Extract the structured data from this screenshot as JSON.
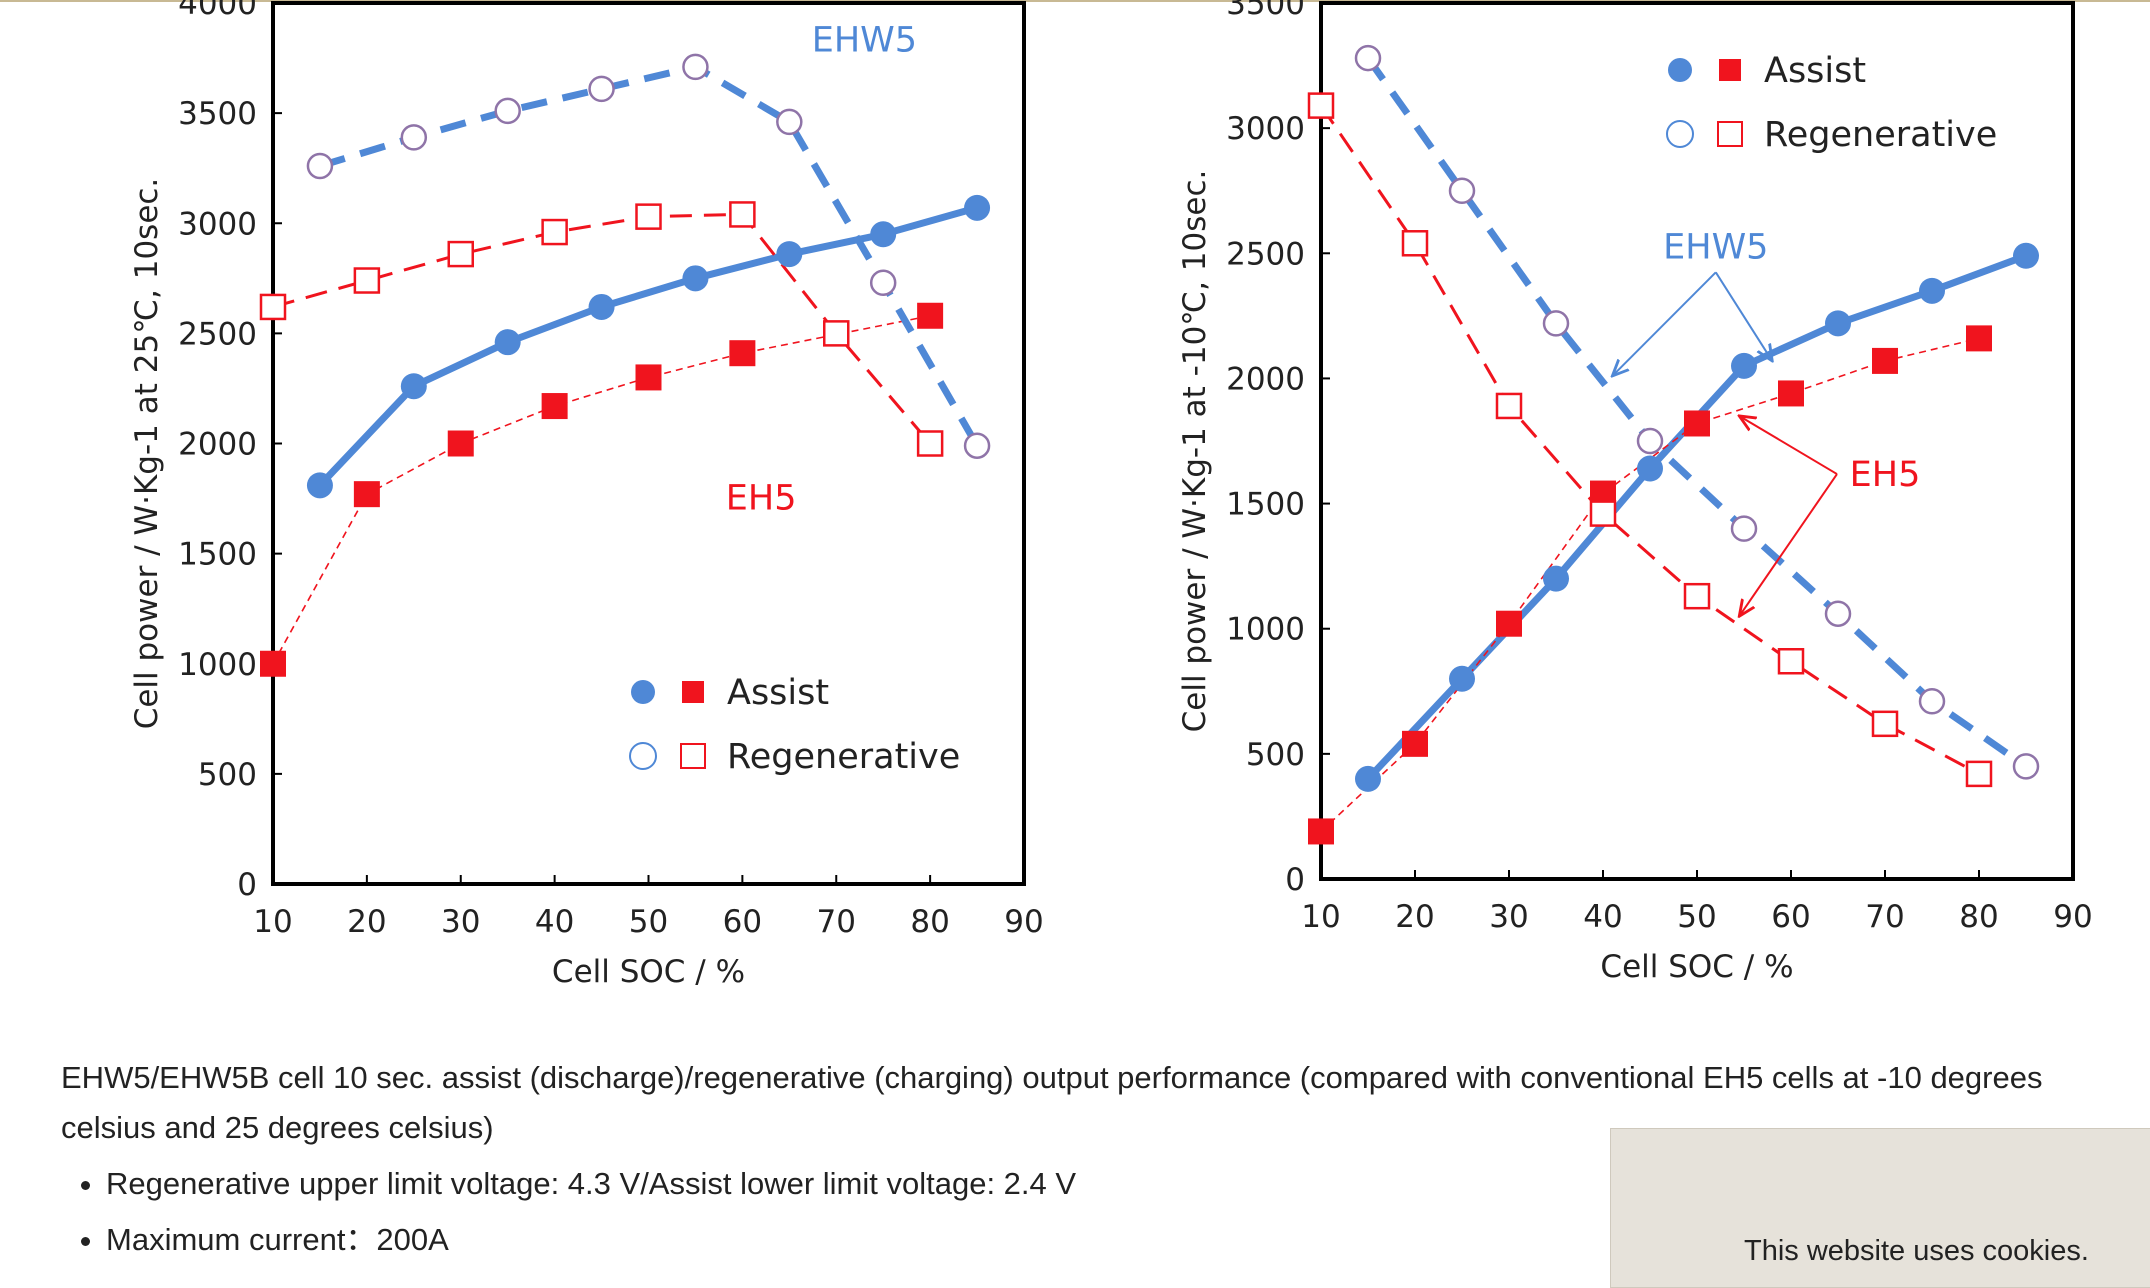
{
  "colors": {
    "blue": "#4f88d6",
    "red": "#f0141e",
    "circle_edge": "#8f74a8",
    "top_line": "#c8b994",
    "cookie_bg": "#e6e2da"
  },
  "chart_data": [
    {
      "type": "line",
      "ylabel": "Cell power / W·Kg-1 at 25℃, 10sec.",
      "xlabel": "Cell SOC / %",
      "xlim": [
        10,
        90
      ],
      "ylim": [
        0,
        4000
      ],
      "xticks": [
        10,
        20,
        30,
        40,
        50,
        60,
        70,
        80,
        90
      ],
      "yticks": [
        0,
        500,
        1000,
        1500,
        2000,
        2500,
        3000,
        3500,
        4000
      ],
      "grid": false,
      "legend": {
        "position": "bottom-right",
        "assist_label": "Assist",
        "regen_label": "Regenerative"
      },
      "annotations": [
        {
          "text": "EHW5",
          "x": 73,
          "y": 3780,
          "color": "blue"
        },
        {
          "text": "EH5",
          "x": 62,
          "y": 1700,
          "color": "red"
        }
      ],
      "series": [
        {
          "cell": "EHW5",
          "mode": "Assist",
          "x": [
            15,
            25,
            35,
            45,
            55,
            65,
            75,
            85
          ],
          "y": [
            1810,
            2260,
            2460,
            2620,
            2750,
            2860,
            2950,
            3070
          ]
        },
        {
          "cell": "EH5",
          "mode": "Assist",
          "x": [
            10,
            20,
            30,
            40,
            50,
            60,
            80
          ],
          "y": [
            1000,
            1770,
            2000,
            2170,
            2300,
            2410,
            2580
          ]
        },
        {
          "cell": "EHW5",
          "mode": "Regenerative",
          "x": [
            15,
            25,
            35,
            45,
            55,
            65,
            75,
            85
          ],
          "y": [
            3260,
            3390,
            3510,
            3610,
            3710,
            3460,
            2730,
            1990
          ]
        },
        {
          "cell": "EH5",
          "mode": "Regenerative",
          "x": [
            10,
            20,
            30,
            40,
            50,
            60,
            70,
            80
          ],
          "y": [
            2620,
            2740,
            2860,
            2960,
            3030,
            3040,
            2500,
            2000
          ]
        }
      ]
    },
    {
      "type": "line",
      "ylabel": "Cell power / W·Kg-1 at -10℃, 10sec.",
      "xlabel": "Cell SOC / %",
      "xlim": [
        10,
        90
      ],
      "ylim": [
        0,
        3500
      ],
      "xticks": [
        10,
        20,
        30,
        40,
        50,
        60,
        70,
        80,
        90
      ],
      "yticks": [
        0,
        500,
        1000,
        1500,
        2000,
        2500,
        3000,
        3500
      ],
      "grid": false,
      "legend": {
        "position": "top-right",
        "assist_label": "Assist",
        "regen_label": "Regenerative"
      },
      "annotations": [
        {
          "text": "EHW5",
          "x": 52,
          "y": 2480,
          "color": "blue",
          "arrows_to": [
            [
              41,
              2010
            ],
            [
              58,
              2070
            ]
          ]
        },
        {
          "text": "EH5",
          "x": 70,
          "y": 1570,
          "color": "red",
          "arrows_to": [
            [
              54.5,
              1850
            ],
            [
              54.5,
              1050
            ]
          ]
        }
      ],
      "series": [
        {
          "cell": "EHW5",
          "mode": "Assist",
          "x": [
            15,
            25,
            35,
            45,
            55,
            65,
            75,
            85
          ],
          "y": [
            400,
            800,
            1200,
            1640,
            2050,
            2220,
            2350,
            2490
          ]
        },
        {
          "cell": "EH5",
          "mode": "Assist",
          "x": [
            10,
            20,
            30,
            40,
            50,
            60,
            70,
            80
          ],
          "y": [
            190,
            540,
            1020,
            1540,
            1820,
            1940,
            2070,
            2160
          ]
        },
        {
          "cell": "EHW5",
          "mode": "Regenerative",
          "x": [
            15,
            25,
            35,
            45,
            55,
            65,
            75,
            85
          ],
          "y": [
            3280,
            2750,
            2220,
            1750,
            1400,
            1060,
            710,
            450
          ]
        },
        {
          "cell": "EH5",
          "mode": "Regenerative",
          "x": [
            10,
            20,
            30,
            40,
            50,
            60,
            70,
            80
          ],
          "y": [
            3090,
            2540,
            1890,
            1460,
            1130,
            870,
            620,
            420
          ]
        }
      ]
    }
  ],
  "caption": "EHW5/EHW5B cell 10 sec. assist (discharge)/regenerative (charging) output performance (compared with conventional EH5 cells at -10 degrees celsius and 25 degrees celsius)",
  "specs": [
    "Regenerative upper limit voltage: 4.3 V/Assist lower limit voltage: 2.4 V",
    "Maximum current：200A"
  ],
  "cookie_banner": {
    "text": "This website uses cookies."
  }
}
